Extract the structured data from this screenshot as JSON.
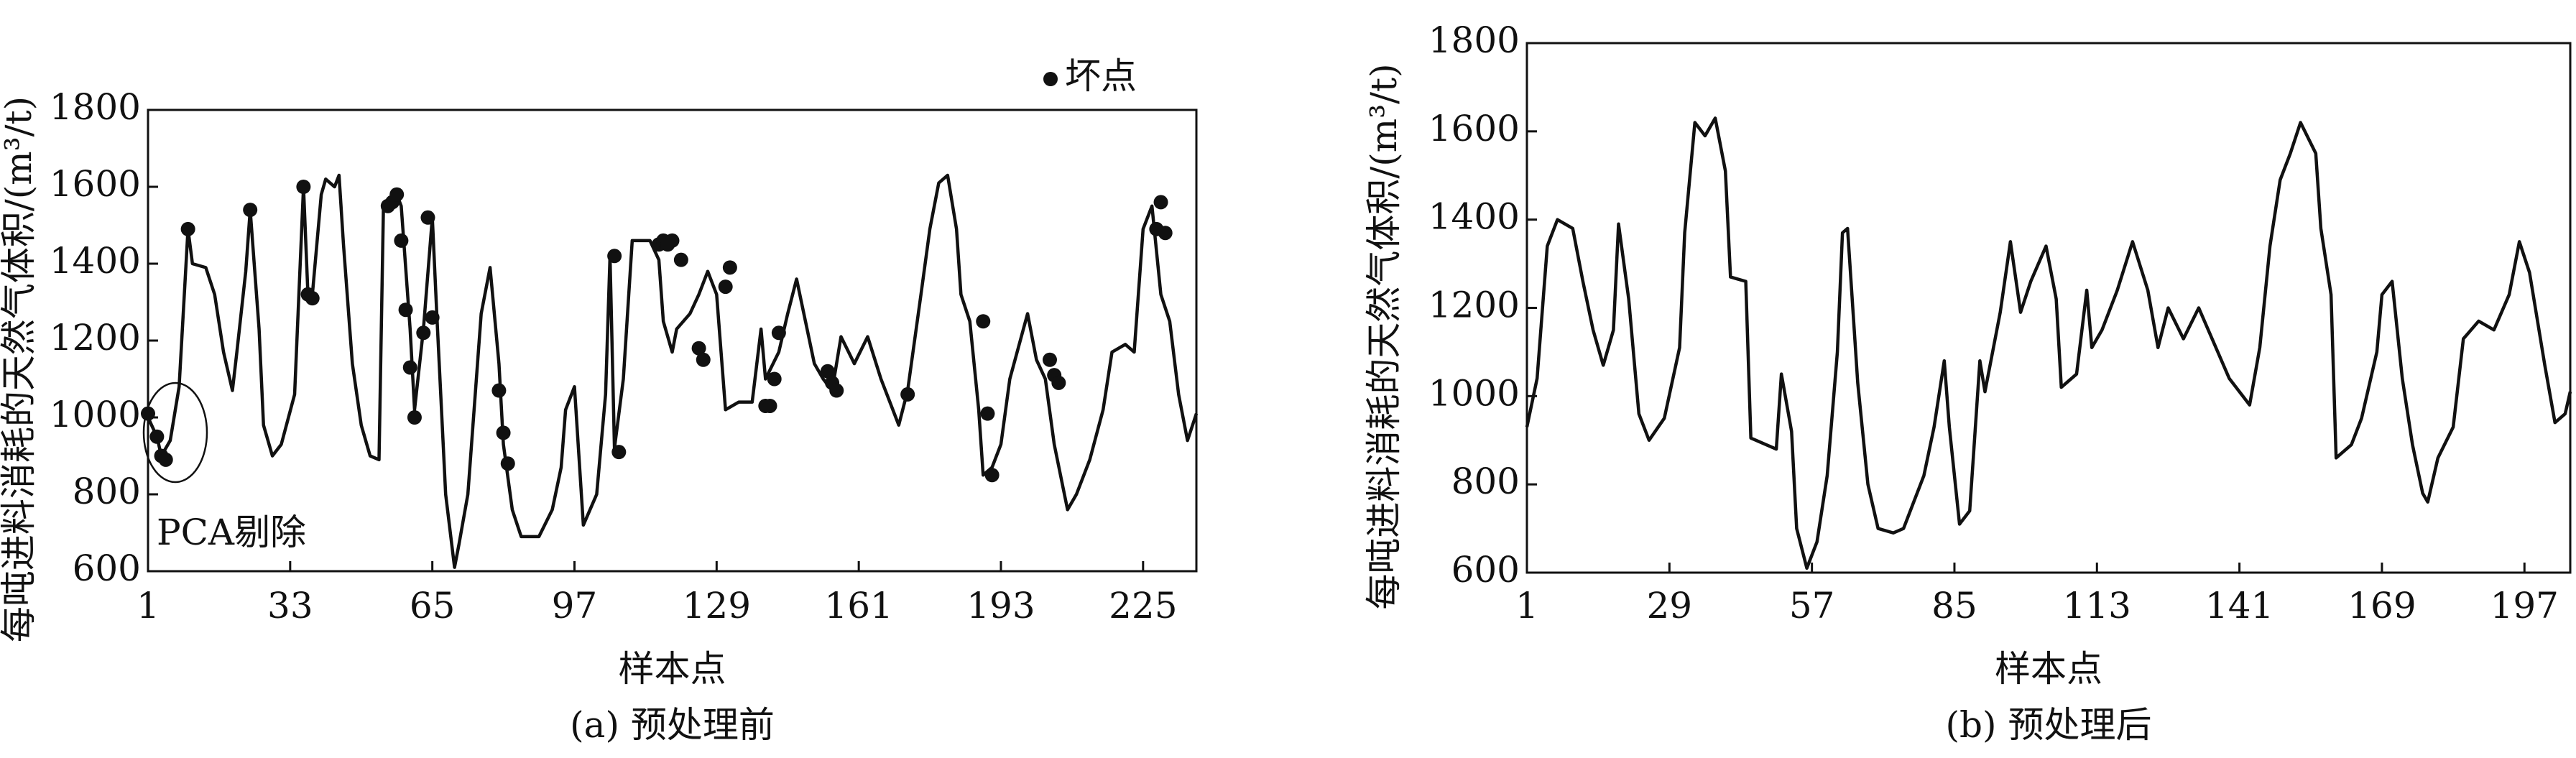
{
  "chart_data": [
    {
      "type": "line",
      "caption": "(a) 预处理前",
      "xlabel": "样本点",
      "ylabel": "每吨进料消耗的天然气体积/(m³/t)",
      "annotation": "PCA剔除",
      "xlim": [
        1,
        237
      ],
      "ylim": [
        600,
        1800
      ],
      "xticks": [
        1,
        33,
        65,
        97,
        129,
        161,
        193,
        225
      ],
      "yticks": [
        600,
        800,
        1000,
        1200,
        1400,
        1600,
        1800
      ],
      "series": [
        {
          "color": "#111111",
          "x": [
            1,
            3,
            4,
            6,
            8,
            10,
            11,
            14,
            16,
            18,
            20,
            21,
            23,
            24,
            26,
            27,
            29,
            31,
            34,
            36,
            37,
            38,
            40,
            41,
            43,
            44,
            45,
            47,
            49,
            51,
            53,
            54,
            57,
            58,
            60,
            61,
            63,
            65,
            66,
            68,
            70,
            71,
            73,
            76,
            78,
            80,
            81,
            83,
            85,
            89,
            92,
            94,
            95,
            97,
            99,
            102,
            104,
            105,
            106,
            108,
            110,
            114,
            116,
            117,
            119,
            120,
            123,
            125,
            127,
            129,
            131,
            134,
            137,
            139,
            140,
            143,
            145,
            147,
            149,
            151,
            153,
            155,
            157,
            160,
            163,
            166,
            168,
            170,
            172,
            175,
            177,
            179,
            181,
            183,
            184,
            186,
            188,
            189,
            191,
            193,
            195,
            199,
            201,
            203,
            205,
            208,
            210,
            213,
            216,
            218,
            221,
            223,
            225,
            227,
            229,
            231,
            233,
            235,
            237
          ],
          "values": [
            1000,
            950,
            900,
            940,
            1080,
            1490,
            1400,
            1390,
            1320,
            1170,
            1070,
            1170,
            1380,
            1540,
            1230,
            980,
            900,
            930,
            1060,
            1600,
            1320,
            1320,
            1580,
            1620,
            1600,
            1630,
            1450,
            1140,
            980,
            900,
            890,
            1550,
            1580,
            1550,
            1230,
            1020,
            1230,
            1520,
            1270,
            800,
            610,
            670,
            800,
            1270,
            1390,
            1140,
            930,
            760,
            690,
            690,
            760,
            870,
            1020,
            1080,
            720,
            800,
            1060,
            1420,
            920,
            1100,
            1460,
            1460,
            1410,
            1250,
            1170,
            1230,
            1270,
            1320,
            1380,
            1320,
            1020,
            1040,
            1040,
            1230,
            1100,
            1170,
            1270,
            1360,
            1250,
            1140,
            1100,
            1070,
            1210,
            1140,
            1210,
            1100,
            1040,
            980,
            1070,
            1320,
            1490,
            1610,
            1630,
            1490,
            1320,
            1250,
            1020,
            850,
            870,
            930,
            1100,
            1270,
            1150,
            1100,
            930,
            760,
            800,
            890,
            1020,
            1170,
            1190,
            1170,
            1490,
            1550,
            1320,
            1250,
            1060,
            940,
            1010
          ]
        },
        {
          "type": "scatter",
          "name": "坏点",
          "color": "#111111",
          "x": [
            1,
            3,
            4,
            5,
            10,
            24,
            36,
            37,
            38,
            55,
            56,
            57,
            58,
            59,
            60,
            61,
            63,
            64,
            65,
            80,
            81,
            82,
            106,
            107,
            116,
            117,
            118,
            119,
            121,
            125,
            126,
            131,
            132,
            140,
            141,
            142,
            143,
            154,
            155,
            156,
            172,
            189,
            190,
            191,
            204,
            205,
            206,
            228,
            229,
            230
          ],
          "values": [
            1010,
            950,
            900,
            890,
            1490,
            1540,
            1600,
            1320,
            1310,
            1550,
            1560,
            1580,
            1460,
            1280,
            1130,
            1000,
            1220,
            1520,
            1260,
            1070,
            960,
            880,
            1420,
            910,
            1450,
            1460,
            1450,
            1460,
            1410,
            1180,
            1150,
            1340,
            1390,
            1030,
            1030,
            1100,
            1220,
            1120,
            1090,
            1070,
            1060,
            1250,
            1010,
            850,
            1150,
            1110,
            1090,
            1490,
            1560,
            1480
          ]
        }
      ]
    },
    {
      "type": "line",
      "caption": "(b) 预处理后",
      "xlabel": "样本点",
      "ylabel": "每吨进料消耗的天然气体积/(m³/t)",
      "xlim": [
        1,
        206
      ],
      "ylim": [
        600,
        1800
      ],
      "xticks": [
        1,
        29,
        57,
        85,
        113,
        141,
        169,
        197
      ],
      "yticks": [
        600,
        800,
        1000,
        1200,
        1400,
        1600,
        1800
      ],
      "series": [
        {
          "color": "#111111",
          "x": [
            1,
            3,
            5,
            7,
            10,
            12,
            14,
            16,
            18,
            19,
            21,
            23,
            25,
            28,
            31,
            32,
            34,
            36,
            38,
            40,
            41,
            44,
            45,
            48,
            50,
            51,
            53,
            54,
            56,
            58,
            60,
            62,
            63,
            64,
            66,
            68,
            70,
            73,
            75,
            77,
            79,
            81,
            83,
            84,
            86,
            88,
            90,
            91,
            94,
            96,
            98,
            100,
            103,
            105,
            106,
            109,
            111,
            112,
            114,
            117,
            120,
            123,
            125,
            127,
            130,
            133,
            136,
            139,
            143,
            145,
            147,
            149,
            151,
            153,
            156,
            157,
            159,
            160,
            163,
            165,
            168,
            169,
            171,
            173,
            175,
            177,
            178,
            180,
            183,
            185,
            188,
            191,
            194,
            196,
            198,
            201,
            203,
            205,
            206
          ],
          "values": [
            930,
            1040,
            1340,
            1400,
            1380,
            1260,
            1150,
            1070,
            1150,
            1390,
            1220,
            960,
            900,
            950,
            1110,
            1370,
            1620,
            1590,
            1630,
            1510,
            1270,
            1260,
            905,
            890,
            880,
            1050,
            920,
            700,
            610,
            670,
            820,
            1100,
            1370,
            1380,
            1030,
            800,
            700,
            690,
            700,
            760,
            820,
            930,
            1080,
            930,
            710,
            740,
            1080,
            1010,
            1190,
            1350,
            1190,
            1260,
            1340,
            1220,
            1020,
            1050,
            1240,
            1110,
            1150,
            1240,
            1350,
            1240,
            1110,
            1200,
            1130,
            1200,
            1120,
            1040,
            980,
            1110,
            1340,
            1490,
            1550,
            1620,
            1550,
            1380,
            1230,
            860,
            890,
            950,
            1100,
            1230,
            1260,
            1040,
            890,
            780,
            760,
            860,
            930,
            1130,
            1170,
            1150,
            1230,
            1350,
            1280,
            1070,
            940,
            960,
            1010
          ]
        }
      ]
    }
  ]
}
